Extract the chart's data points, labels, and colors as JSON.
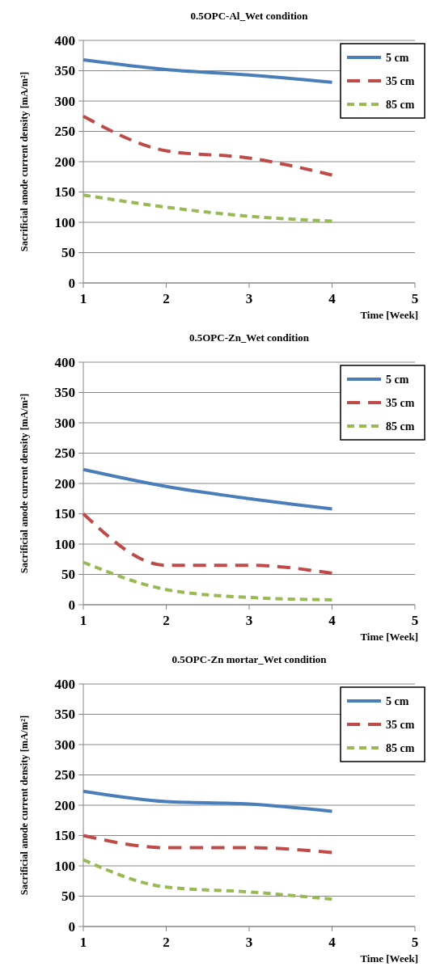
{
  "chart_data": [
    {
      "type": "line",
      "title": "0.5OPC-Al_Wet condition",
      "xlabel": "Time [Week]",
      "ylabel": "Sacrificial anode current density [mA/m²]",
      "x": [
        1,
        2,
        3,
        4
      ],
      "xlim": [
        1,
        5
      ],
      "xticks": [
        1,
        2,
        3,
        4,
        5
      ],
      "ylim": [
        0,
        400
      ],
      "yticks": [
        0,
        50,
        100,
        150,
        200,
        250,
        300,
        350,
        400
      ],
      "grid": "y",
      "legend": "top right",
      "marker": "none",
      "series": [
        {
          "name": "5 cm",
          "color": "#4a7ebb",
          "line_style": "solid",
          "values": [
            368,
            352,
            343,
            331
          ]
        },
        {
          "name": "35 cm",
          "color": "#be4b48",
          "line_style": "dashed",
          "values": [
            275,
            218,
            206,
            178
          ]
        },
        {
          "name": "85 cm",
          "color": "#98b954",
          "line_style": "dotted",
          "values": [
            145,
            125,
            110,
            102
          ]
        }
      ]
    },
    {
      "type": "line",
      "title": "0.5OPC-Zn_Wet condition",
      "xlabel": "Time [Week]",
      "ylabel": "Sacrificial anode current density [mA/m²]",
      "x": [
        1,
        2,
        3,
        4
      ],
      "xlim": [
        1,
        5
      ],
      "xticks": [
        1,
        2,
        3,
        4,
        5
      ],
      "ylim": [
        0,
        400
      ],
      "yticks": [
        0,
        50,
        100,
        150,
        200,
        250,
        300,
        350,
        400
      ],
      "grid": "y",
      "legend": "top right",
      "marker": "none",
      "series": [
        {
          "name": "5 cm",
          "color": "#4a7ebb",
          "line_style": "solid",
          "values": [
            223,
            195,
            175,
            158
          ]
        },
        {
          "name": "35 cm",
          "color": "#be4b48",
          "line_style": "dashed",
          "values": [
            150,
            65,
            65,
            52
          ]
        },
        {
          "name": "85 cm",
          "color": "#98b954",
          "line_style": "dotted",
          "values": [
            70,
            25,
            12,
            8
          ]
        }
      ]
    },
    {
      "type": "line",
      "title": "0.5OPC-Zn mortar_Wet condition",
      "xlabel": "Time [Week]",
      "ylabel": "Sacrificial anode current density [mA/m²]",
      "x": [
        1,
        2,
        3,
        4
      ],
      "xlim": [
        1,
        5
      ],
      "xticks": [
        1,
        2,
        3,
        4,
        5
      ],
      "ylim": [
        0,
        400
      ],
      "yticks": [
        0,
        50,
        100,
        150,
        200,
        250,
        300,
        350,
        400
      ],
      "grid": "y",
      "legend": "top right",
      "marker": "none",
      "series": [
        {
          "name": "5 cm",
          "color": "#4a7ebb",
          "line_style": "solid",
          "values": [
            223,
            206,
            202,
            190
          ]
        },
        {
          "name": "35 cm",
          "color": "#be4b48",
          "line_style": "dashed",
          "values": [
            150,
            130,
            130,
            122
          ]
        },
        {
          "name": "85 cm",
          "color": "#98b954",
          "line_style": "dotted",
          "values": [
            110,
            65,
            57,
            45
          ]
        }
      ]
    }
  ]
}
